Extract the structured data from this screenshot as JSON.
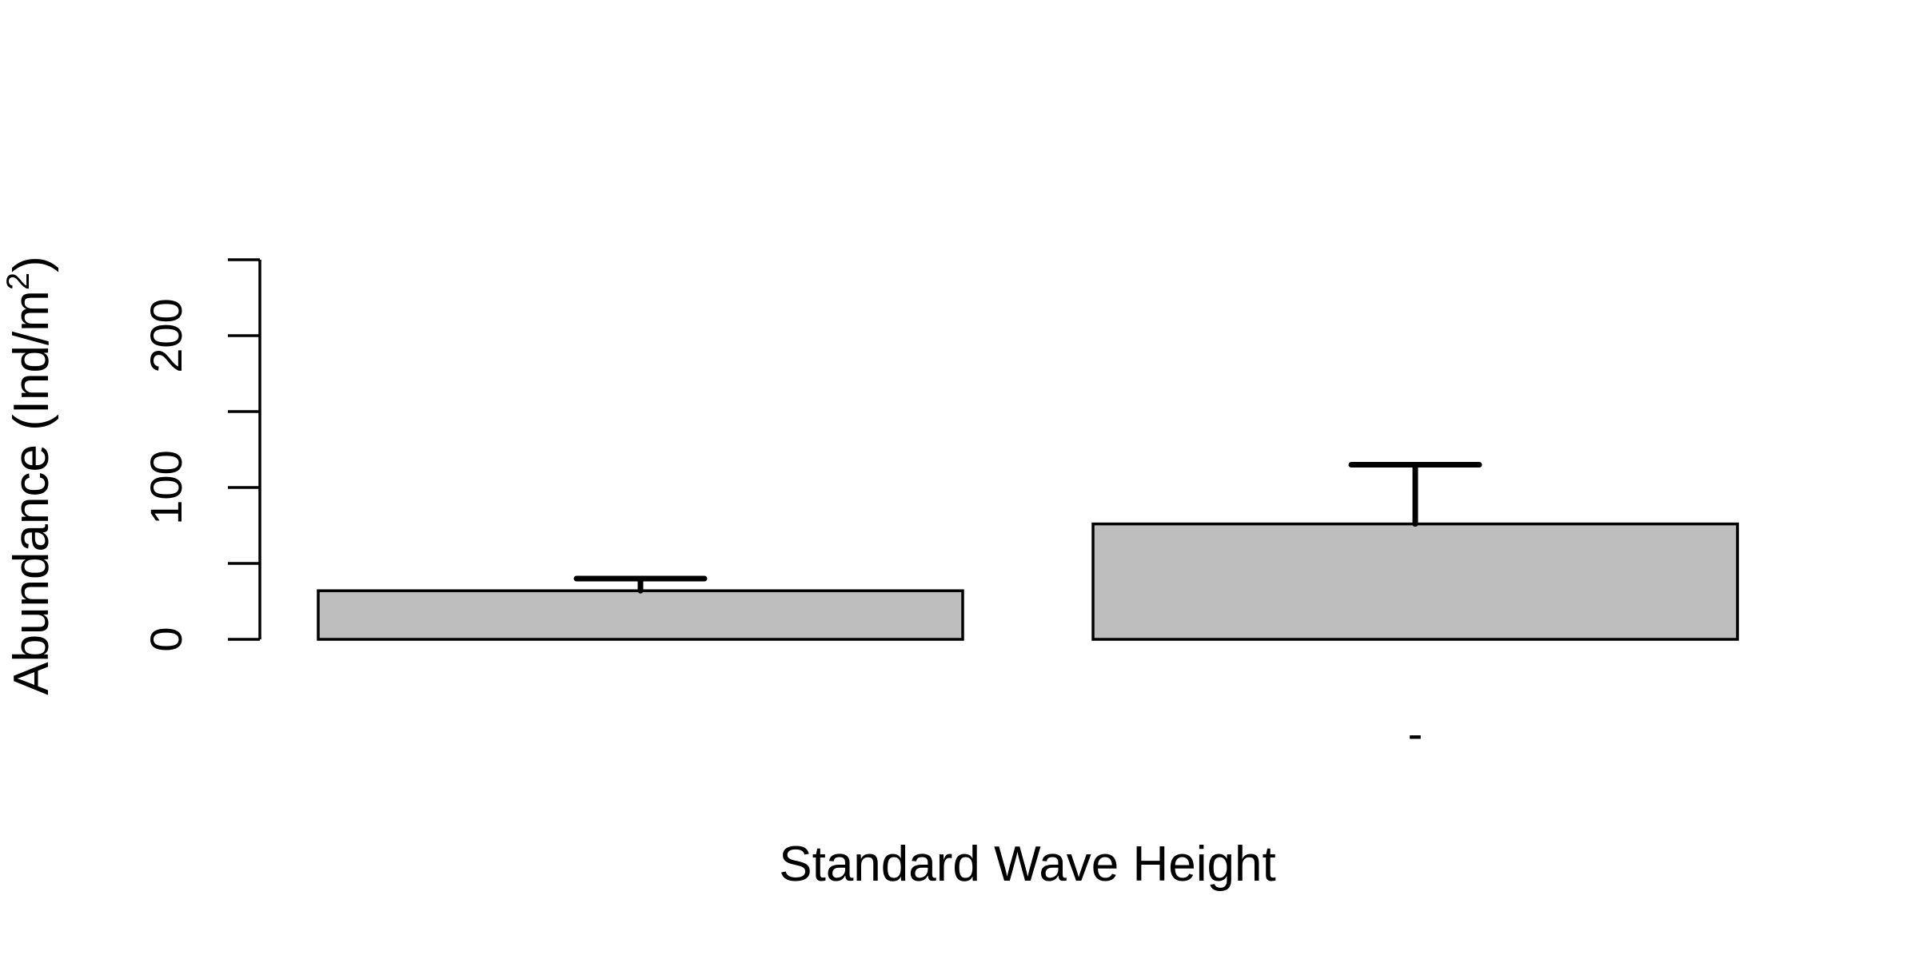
{
  "chart_data": {
    "type": "bar",
    "title": "",
    "xlabel": "Standard Wave Height",
    "ylabel_main": "Abundance (Ind/m",
    "ylabel_sup": "2",
    "ylabel_close": ")",
    "ylim": [
      0,
      250
    ],
    "y_ticks": [
      0,
      50,
      100,
      150,
      200,
      250
    ],
    "y_tick_labels": [
      "0",
      "",
      "100",
      "",
      "200",
      ""
    ],
    "categories": [
      "",
      "-"
    ],
    "values": [
      32,
      76
    ],
    "error_upper": [
      40,
      115
    ],
    "colors": {
      "bar_fill": "#bebebe",
      "bar_stroke": "#000000",
      "text": "#000000"
    },
    "grid": false,
    "legend": "none"
  }
}
